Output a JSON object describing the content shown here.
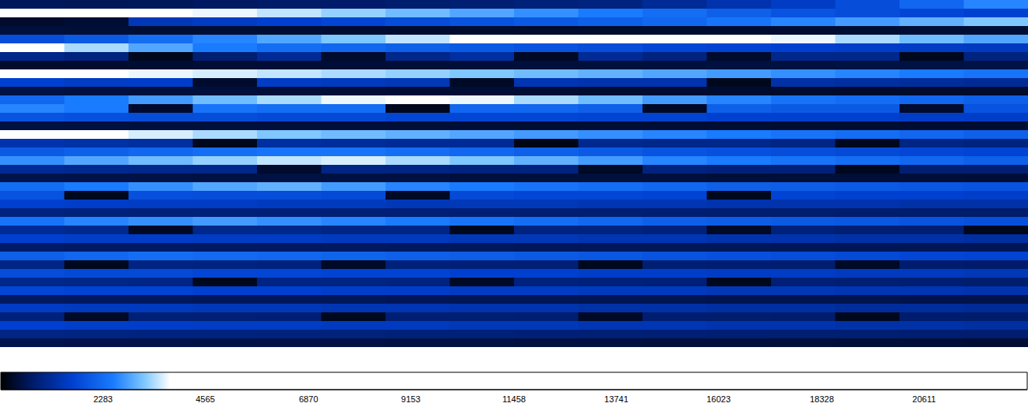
{
  "chart_data": {
    "type": "heatmap",
    "tick_labels": false,
    "cells": [
      [
        620,
        580,
        600,
        650,
        700,
        720,
        760,
        800,
        850,
        900,
        1100,
        1300,
        1500,
        1800,
        2200,
        2600
      ],
      [
        4200,
        4000,
        3900,
        3700,
        3500,
        3300,
        3100,
        2900,
        2700,
        2500,
        2300,
        2100,
        1900,
        1800,
        1700,
        1600
      ],
      [
        300,
        350,
        1400,
        1500,
        1600,
        1700,
        1800,
        1900,
        2000,
        2100,
        2200,
        2400,
        2600,
        2800,
        3000,
        3200
      ],
      [
        400,
        380,
        360,
        350,
        340,
        330,
        320,
        310,
        300,
        300,
        310,
        320,
        330,
        340,
        350,
        360
      ],
      [
        1800,
        2000,
        2300,
        2600,
        2900,
        3200,
        3500,
        3800,
        4000,
        4200,
        4300,
        4000,
        3700,
        3400,
        3100,
        2900
      ],
      [
        3900,
        3400,
        2900,
        2500,
        2300,
        2200,
        2100,
        2000,
        1900,
        1800,
        1700,
        1650,
        1600,
        1550,
        1500,
        1450
      ],
      [
        1000,
        900,
        200,
        800,
        1100,
        300,
        1000,
        1200,
        250,
        1100,
        900,
        300,
        1000,
        1000,
        200,
        900
      ],
      [
        300,
        320,
        340,
        350,
        360,
        370,
        380,
        390,
        400,
        410,
        420,
        430,
        440,
        450,
        460,
        470
      ],
      [
        4100,
        3900,
        3700,
        3600,
        3500,
        3400,
        3300,
        3200,
        3100,
        3000,
        2900,
        2800,
        2700,
        2600,
        2500,
        2400
      ],
      [
        1600,
        1500,
        1550,
        300,
        1500,
        1450,
        1400,
        250,
        1350,
        1300,
        1300,
        200,
        1250,
        1200,
        1150,
        1100
      ],
      [
        450,
        430,
        410,
        400,
        390,
        380,
        370,
        360,
        350,
        340,
        330,
        320,
        310,
        300,
        300,
        300
      ],
      [
        2200,
        2500,
        2800,
        3100,
        3400,
        3700,
        3900,
        3700,
        3400,
        3100,
        2800,
        2600,
        2400,
        2300,
        2200,
        2100
      ],
      [
        2600,
        2500,
        300,
        2400,
        2300,
        2300,
        200,
        2200,
        2200,
        2100,
        250,
        2100,
        2000,
        2000,
        300,
        1900
      ],
      [
        1900,
        1850,
        1800,
        1800,
        1750,
        1750,
        1700,
        1700,
        1700,
        1650,
        1650,
        1600,
        1600,
        1600,
        1550,
        1550
      ],
      [
        450,
        430,
        420,
        410,
        400,
        390,
        380,
        370,
        360,
        350,
        350,
        350,
        340,
        340,
        330,
        330
      ],
      [
        4000,
        3800,
        3600,
        3400,
        3200,
        3100,
        3000,
        2900,
        2800,
        2700,
        2600,
        2500,
        2400,
        2300,
        2200,
        2100
      ],
      [
        1300,
        1250,
        1200,
        200,
        1200,
        1150,
        1100,
        1100,
        150,
        1050,
        1000,
        1000,
        950,
        200,
        950,
        900
      ],
      [
        2000,
        2100,
        2200,
        2300,
        2400,
        2400,
        2300,
        2200,
        2100,
        2000,
        1900,
        1850,
        1800,
        1750,
        1700,
        1650
      ],
      [
        2700,
        2900,
        3100,
        3300,
        3500,
        3600,
        3400,
        3200,
        3000,
        2800,
        2600,
        2500,
        2400,
        2300,
        2200,
        2100
      ],
      [
        1100,
        1050,
        1000,
        1000,
        300,
        950,
        950,
        900,
        900,
        250,
        900,
        850,
        850,
        200,
        800,
        800
      ],
      [
        500,
        480,
        470,
        460,
        450,
        440,
        430,
        420,
        410,
        400,
        400,
        390,
        390,
        380,
        380,
        370
      ],
      [
        2300,
        2500,
        2700,
        2900,
        3000,
        2800,
        2600,
        2500,
        2400,
        2300,
        2200,
        2100,
        2050,
        2000,
        1950,
        1900
      ],
      [
        1900,
        200,
        1850,
        1800,
        1800,
        1750,
        250,
        1750,
        1700,
        1700,
        1650,
        200,
        1650,
        1600,
        1600,
        1550
      ],
      [
        1600,
        1550,
        1500,
        1500,
        1450,
        1450,
        1400,
        1400,
        1400,
        1350,
        1350,
        1300,
        1300,
        1300,
        1250,
        1250
      ],
      [
        900,
        880,
        860,
        850,
        840,
        830,
        820,
        810,
        800,
        790,
        780,
        770,
        760,
        750,
        740,
        730
      ],
      [
        2400,
        2600,
        2700,
        2800,
        2700,
        2600,
        2500,
        2400,
        2300,
        2200,
        2100,
        2050,
        2000,
        1950,
        1900,
        1850
      ],
      [
        1100,
        1050,
        250,
        1000,
        1000,
        950,
        950,
        200,
        900,
        900,
        850,
        250,
        850,
        800,
        800,
        200
      ],
      [
        1600,
        1550,
        1550,
        1500,
        1500,
        1450,
        1450,
        1400,
        1400,
        1350,
        1350,
        1300,
        1300,
        1250,
        1250,
        1200
      ],
      [
        700,
        690,
        680,
        670,
        660,
        650,
        640,
        630,
        620,
        610,
        600,
        600,
        590,
        590,
        580,
        580
      ],
      [
        2100,
        2200,
        2300,
        2250,
        2200,
        2150,
        2100,
        2050,
        2000,
        1950,
        1900,
        1850,
        1800,
        1750,
        1700,
        1650
      ],
      [
        950,
        200,
        920,
        900,
        880,
        250,
        860,
        840,
        820,
        200,
        800,
        780,
        760,
        250,
        740,
        720
      ],
      [
        1800,
        1750,
        1750,
        1700,
        1700,
        1650,
        1650,
        1600,
        1600,
        1550,
        1550,
        1500,
        1500,
        1450,
        1450,
        1400
      ],
      [
        1000,
        980,
        960,
        200,
        940,
        920,
        900,
        250,
        880,
        860,
        840,
        200,
        820,
        800,
        780,
        760
      ],
      [
        1700,
        1650,
        1650,
        1600,
        1600,
        1550,
        1550,
        1500,
        1500,
        1450,
        1450,
        1400,
        1400,
        1350,
        1350,
        1300
      ],
      [
        650,
        640,
        630,
        620,
        610,
        600,
        590,
        580,
        570,
        560,
        550,
        540,
        530,
        520,
        510,
        500
      ],
      [
        1500,
        1450,
        1450,
        1400,
        1400,
        1350,
        1350,
        1300,
        1300,
        1250,
        1250,
        1200,
        1200,
        1150,
        1150,
        1100
      ],
      [
        850,
        250,
        830,
        820,
        810,
        200,
        800,
        790,
        780,
        250,
        770,
        760,
        750,
        200,
        740,
        730
      ],
      [
        1600,
        1550,
        1550,
        1500,
        1500,
        1450,
        1450,
        1400,
        1400,
        1350,
        1350,
        1300,
        1300,
        1250,
        1250,
        1200
      ],
      [
        950,
        930,
        910,
        900,
        880,
        870,
        860,
        850,
        840,
        830,
        820,
        810,
        800,
        790,
        780,
        770
      ],
      [
        520,
        510,
        500,
        490,
        480,
        470,
        460,
        450,
        440,
        430,
        420,
        410,
        400,
        390,
        380,
        370
      ]
    ],
    "colorbar_range": [
      0,
      22913
    ],
    "colorbar_ticks": [
      2283,
      4565,
      6870,
      9153,
      11458,
      13741,
      16023,
      18328,
      20611
    ]
  }
}
